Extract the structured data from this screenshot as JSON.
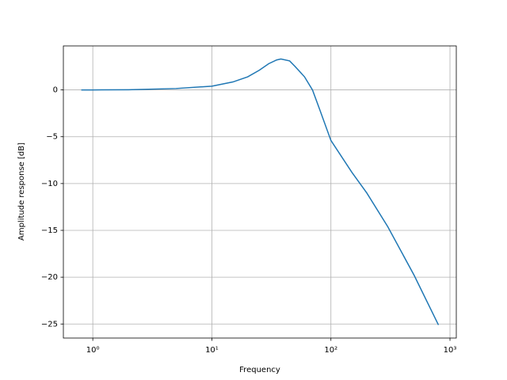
{
  "chart_data": {
    "type": "line",
    "xlabel": "Frequency",
    "ylabel": "Amplitude response [dB]",
    "xscale": "log",
    "grid": true,
    "xlim": [
      0.566,
      1130
    ],
    "ylim": [
      -26.5,
      4.7
    ],
    "xticks": [
      {
        "value": 1,
        "label": "10⁰"
      },
      {
        "value": 10,
        "label": "10¹"
      },
      {
        "value": 100,
        "label": "10²"
      },
      {
        "value": 1000,
        "label": "10³"
      }
    ],
    "yticks": [
      0,
      {
        "value": -5,
        "label": "−5"
      },
      {
        "value": -10,
        "label": "−10"
      },
      {
        "value": -15,
        "label": "−15"
      },
      {
        "value": -20,
        "label": "−20"
      },
      {
        "value": -25,
        "label": "−25"
      }
    ],
    "x": [
      0.8,
      1,
      2,
      5,
      10,
      15,
      20,
      25,
      30,
      35,
      38,
      45,
      50,
      60,
      70,
      80,
      100,
      150,
      200,
      300,
      500,
      800
    ],
    "series": [
      {
        "color": "#1f77b4",
        "values": [
          0,
          0,
          0.02,
          0.15,
          0.4,
          0.85,
          1.4,
          2.1,
          2.8,
          3.2,
          3.3,
          3.1,
          2.5,
          1.4,
          0,
          -2.0,
          -5.4,
          -8.8,
          -11.0,
          -14.6,
          -19.8,
          -25.1
        ]
      }
    ]
  }
}
